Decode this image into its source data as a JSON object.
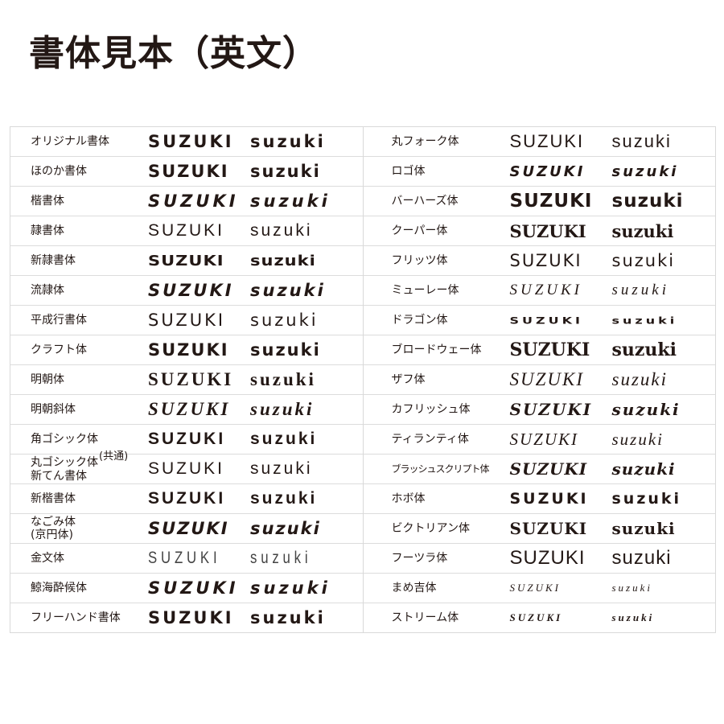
{
  "title": "書体見本（英文）",
  "sample": {
    "upper": "SUZUKI",
    "lower": "suzuki"
  },
  "left_fonts": [
    {
      "label": "オリジナル書体"
    },
    {
      "label": "ほのか書体"
    },
    {
      "label": "楷書体"
    },
    {
      "label": "隷書体"
    },
    {
      "label": "新隷書体"
    },
    {
      "label": "流隷体"
    },
    {
      "label": "平成行書体"
    },
    {
      "label": "クラフト体"
    },
    {
      "label": "明朝体"
    },
    {
      "label": "明朝斜体"
    },
    {
      "label": "角ゴシック体"
    },
    {
      "label": "丸ゴシック体",
      "label2": "新てん書体",
      "note": "(共通)"
    },
    {
      "label": "新楷書体"
    },
    {
      "label": "なごみ体",
      "label2": "(京円体)"
    },
    {
      "label": "金文体"
    },
    {
      "label": "鯨海酔候体"
    },
    {
      "label": "フリーハンド書体"
    }
  ],
  "right_fonts": [
    {
      "label": "丸フォーク体"
    },
    {
      "label": "ロゴ体"
    },
    {
      "label": "バーハーズ体"
    },
    {
      "label": "クーパー体"
    },
    {
      "label": "フリッツ体"
    },
    {
      "label": "ミューレー体"
    },
    {
      "label": "ドラゴン体"
    },
    {
      "label": "ブロードウェー体"
    },
    {
      "label": "ザフ体"
    },
    {
      "label": "カフリッシュ体"
    },
    {
      "label": "ティランティ体"
    },
    {
      "label": "ブラッシュスクリプト体"
    },
    {
      "label": "ホボ体"
    },
    {
      "label": "ビクトリアン体"
    },
    {
      "label": "フーツラ体"
    },
    {
      "label": "まめ吉体"
    },
    {
      "label": "ストリーム体"
    }
  ]
}
